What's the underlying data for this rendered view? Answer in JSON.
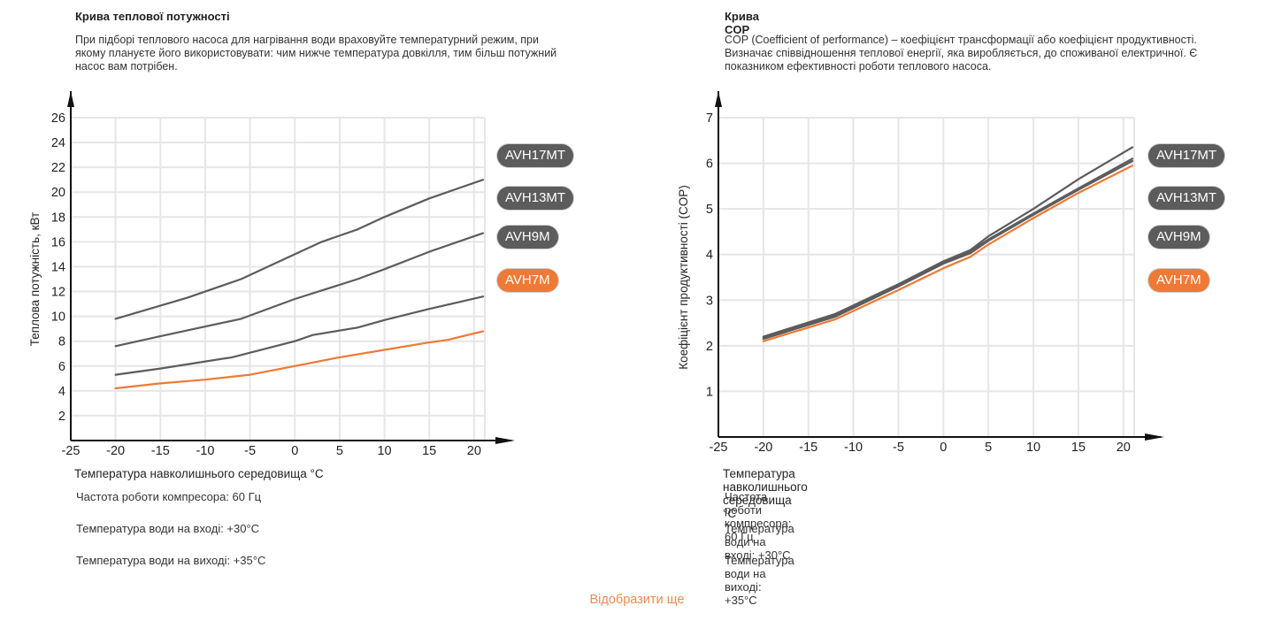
{
  "more_link": "Відобразити ще",
  "colors": {
    "gray_series": "#5c5c5c",
    "orange_series": "#ee7a36",
    "grid": "#e6e6e6",
    "axis": "#111111",
    "link": "#ee8a4c"
  },
  "panels": [
    {
      "title": "Крива теплової потужності",
      "description": "При підборі теплового насоса для нагрівання води враховуйте температурний режим, при якому плануєте його використовувати: чим нижче температура довкілля, тим більш потужний насос вам потрібен.",
      "notes": [
        "Частота роботи компресора: 60 Гц",
        "Температура води на вході: +30°C",
        "Температура води на виході: +35°C"
      ]
    },
    {
      "title": "Крива COP",
      "description": "COP (Coefficient of performance) – коефіцієнт трансформації або коефіцієнт продуктивності. Визначає співвідношення теплової енергії, яка виробляється, до споживаної електричної. Є показником ефективності роботи теплового насоса.",
      "notes": [
        "Частота роботи компресора: 60 Гц",
        "Температура води на вході: +30°C",
        "Температура води на виході: +35°C"
      ]
    }
  ],
  "chart_data": [
    {
      "type": "line",
      "title": "Крива теплової потужності",
      "xlabel": "Температура навколишнього середовища °C",
      "ylabel": "Теплова потужність, кВт",
      "xlim": [
        -25,
        21.2
      ],
      "ylim": [
        0,
        26
      ],
      "xticks": [
        -25,
        -20,
        -15,
        -10,
        -5,
        0,
        5,
        10,
        15,
        20
      ],
      "yticks": [
        2,
        4,
        6,
        8,
        10,
        12,
        14,
        16,
        18,
        20,
        22,
        24,
        26
      ],
      "grid": true,
      "legend_position": "right",
      "series": [
        {
          "name": "AVH17MT",
          "color": "#5c5c5c",
          "x": [
            -20,
            -12,
            -6,
            0,
            3,
            7,
            10,
            15,
            21
          ],
          "y": [
            9.8,
            11.5,
            13.0,
            15.0,
            16.0,
            17.0,
            18.0,
            19.5,
            21.0
          ]
        },
        {
          "name": "AVH13MT",
          "color": "#5c5c5c",
          "x": [
            -20,
            -15,
            -6,
            0,
            7,
            10,
            15,
            21
          ],
          "y": [
            7.6,
            8.4,
            9.8,
            11.4,
            13.0,
            13.8,
            15.2,
            16.7
          ]
        },
        {
          "name": "AVH9M",
          "color": "#5c5c5c",
          "x": [
            -20,
            -15,
            -7,
            0,
            2,
            7,
            10,
            15,
            21
          ],
          "y": [
            5.3,
            5.8,
            6.7,
            8.0,
            8.5,
            9.1,
            9.7,
            10.6,
            11.6
          ]
        },
        {
          "name": "AVH7M",
          "color": "#ee7a36",
          "x": [
            -20,
            -15,
            -10,
            -5,
            0,
            5,
            10,
            15,
            17,
            21
          ],
          "y": [
            4.2,
            4.6,
            4.9,
            5.3,
            6.0,
            6.7,
            7.3,
            7.9,
            8.1,
            8.8
          ]
        }
      ]
    },
    {
      "type": "line",
      "title": "Крива COP",
      "xlabel": "Температура навколишнього середовища °C",
      "ylabel": "Коефіцієнт продуктивності (COP)",
      "xlim": [
        -25,
        21.2
      ],
      "ylim": [
        0,
        7
      ],
      "xticks": [
        -25,
        -20,
        -15,
        -10,
        -5,
        0,
        5,
        10,
        15,
        20
      ],
      "yticks": [
        1,
        2,
        3,
        4,
        5,
        6,
        7
      ],
      "grid": true,
      "legend_position": "right",
      "series": [
        {
          "name": "AVH17MT",
          "color": "#5c5c5c",
          "x": [
            -20,
            -12,
            -5,
            0,
            3,
            5,
            10,
            15,
            21
          ],
          "y": [
            2.2,
            2.7,
            3.35,
            3.85,
            4.1,
            4.4,
            5.0,
            5.65,
            6.35
          ]
        },
        {
          "name": "AVH13MT",
          "color": "#5c5c5c",
          "x": [
            -20,
            -12,
            -5,
            0,
            3,
            5,
            10,
            15,
            21
          ],
          "y": [
            2.18,
            2.67,
            3.33,
            3.83,
            4.07,
            4.33,
            4.9,
            5.45,
            6.1
          ]
        },
        {
          "name": "AVH9M",
          "color": "#5c5c5c",
          "x": [
            -20,
            -12,
            -5,
            0,
            3,
            5,
            10,
            15,
            21
          ],
          "y": [
            2.15,
            2.64,
            3.3,
            3.8,
            4.03,
            4.3,
            4.87,
            5.42,
            6.05
          ]
        },
        {
          "name": "AVH7M",
          "color": "#ee7a36",
          "x": [
            -20,
            -12,
            -5,
            0,
            3,
            5,
            10,
            15,
            21
          ],
          "y": [
            2.1,
            2.58,
            3.22,
            3.7,
            3.95,
            4.22,
            4.8,
            5.35,
            5.95
          ]
        }
      ]
    }
  ]
}
